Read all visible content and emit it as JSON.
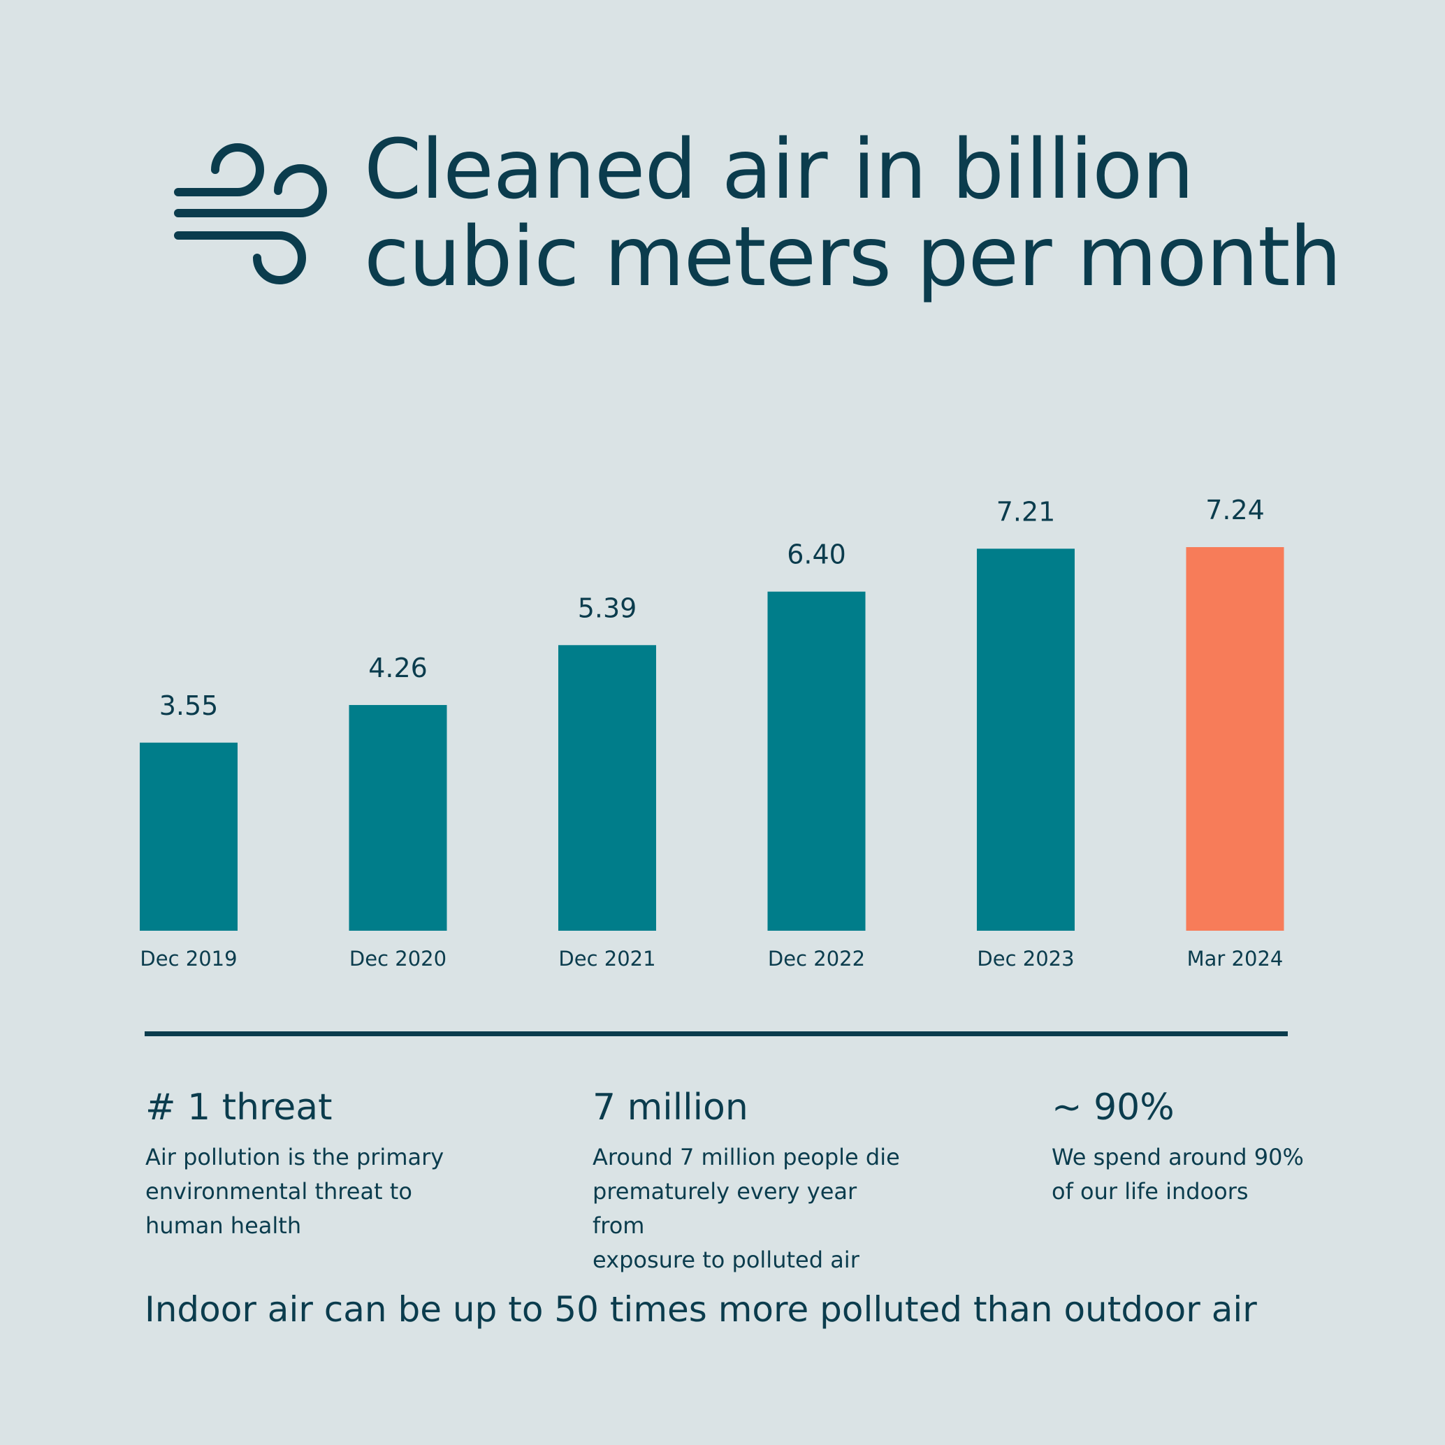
{
  "header": {
    "title_line1": "Cleaned air in billion",
    "title_line2": "cubic meters per month",
    "icon": "wind-icon"
  },
  "colors": {
    "background": "#dae3e5",
    "text": "#0b3c4d",
    "bar": "#007d8a",
    "highlight_bar": "#f77c59"
  },
  "chart_data": {
    "type": "bar",
    "title": "Cleaned air in billion cubic meters per month",
    "categories": [
      "Dec 2019",
      "Dec 2020",
      "Dec 2021",
      "Dec 2022",
      "Dec 2023",
      "Mar 2024"
    ],
    "values": [
      3.55,
      4.26,
      5.39,
      6.4,
      7.21,
      7.24
    ],
    "data_labels": [
      "3.55",
      "4.26",
      "5.39",
      "6.40",
      "7.21",
      "7.24"
    ],
    "highlighted_category": "Mar 2024",
    "ylim": [
      0,
      7.24
    ],
    "grid": false,
    "xlabel": "",
    "ylabel": ""
  },
  "stats": [
    {
      "heading": "# 1 threat",
      "lines": [
        "Air pollution is the primary",
        "environmental threat to",
        "human health"
      ]
    },
    {
      "heading": "7 million",
      "lines": [
        "Around 7 million people die",
        "prematurely every year from",
        "exposure to polluted air"
      ]
    },
    {
      "heading": "~ 90%",
      "lines": [
        "We spend around 90%",
        "of our life indoors"
      ]
    }
  ],
  "footer": "Indoor air can be up to 50 times more polluted than outdoor air"
}
